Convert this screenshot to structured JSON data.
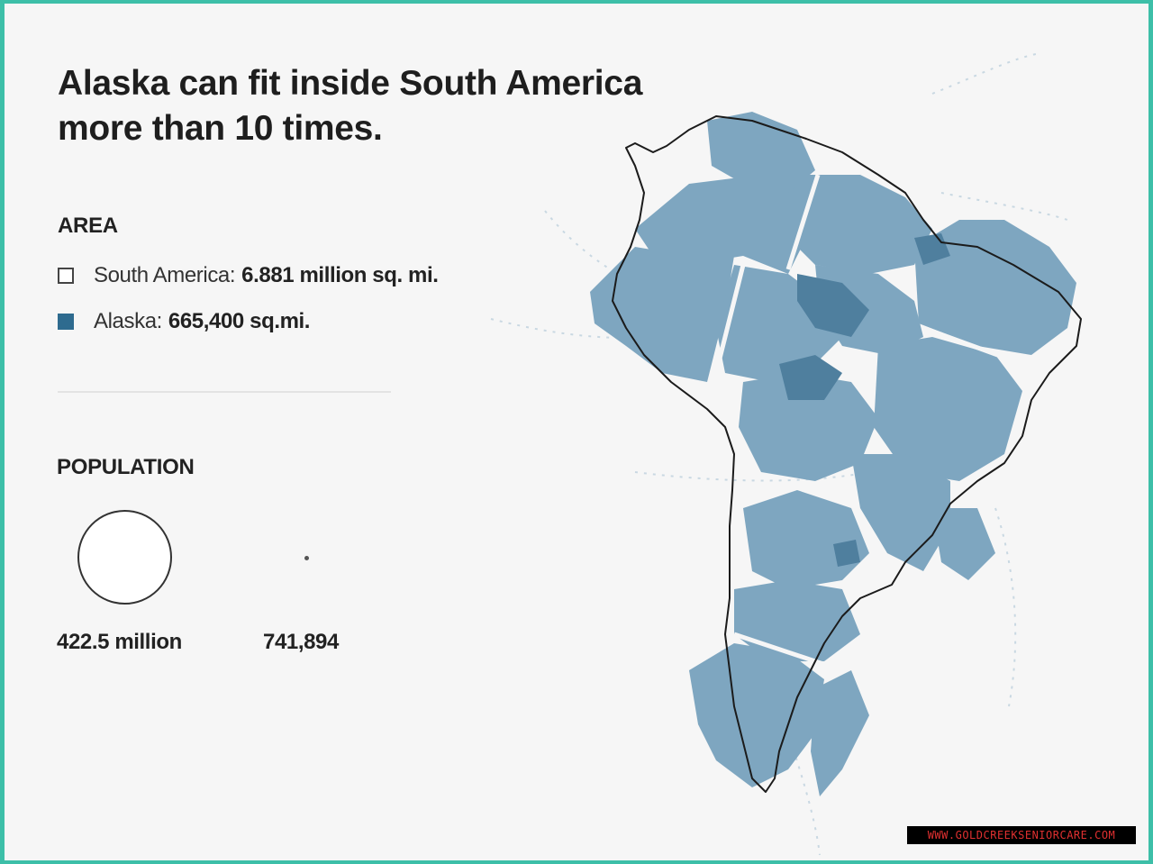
{
  "title": "Alaska can fit inside South America more than 10 times.",
  "area": {
    "heading": "AREA",
    "south_america": {
      "label": "South  America:",
      "value": "6.881 million sq. mi."
    },
    "alaska": {
      "label": "Alaska:",
      "value": "665,400 sq.mi.",
      "color": "#2e6b8f"
    }
  },
  "population": {
    "heading": "POPULATION",
    "south_america_value": "422.5 million",
    "alaska_value": "741,894"
  },
  "map": {
    "outline_color": "#1b1b1b",
    "overlay_color": "#7ea6c0",
    "overlay_dark_color": "#2e6b8f",
    "alaska_copies": 10
  },
  "watermark": "WWW.GOLDCREEKSENIORCARE.COM"
}
